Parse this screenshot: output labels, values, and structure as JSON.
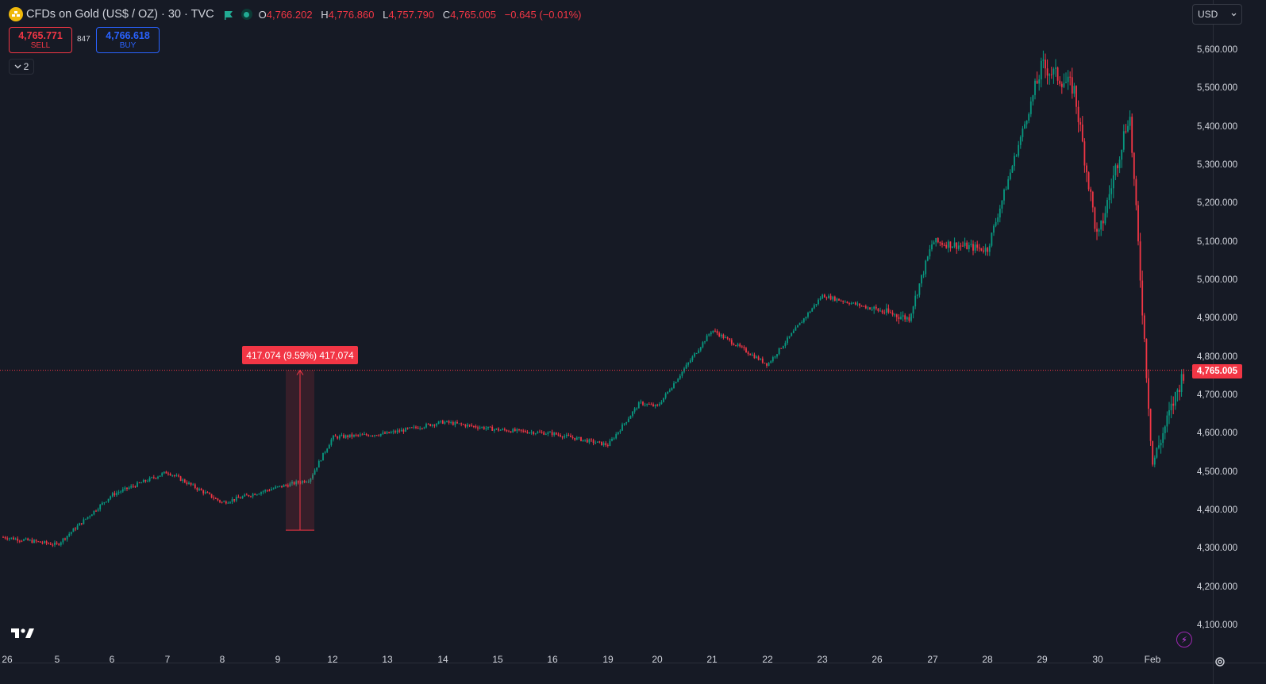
{
  "header": {
    "symbol_title": "CFDs on Gold (US$ / OZ) · 30 · TVC",
    "ohlc": [
      {
        "key": "O",
        "value": "4,766.202"
      },
      {
        "key": "H",
        "value": "4,776.860"
      },
      {
        "key": "L",
        "value": "4,757.790"
      },
      {
        "key": "C",
        "value": "4,765.005"
      }
    ],
    "change": "−0.645 (−0.01%)",
    "colors": {
      "down": "#f23645",
      "up": "#089981",
      "buy": "#2962ff"
    }
  },
  "trade": {
    "sell_price": "4,765.771",
    "sell_label": "SELL",
    "spread": "847",
    "buy_price": "4,766.618",
    "buy_label": "BUY"
  },
  "indicators_toggle": "2",
  "currency": "USD",
  "measure_label": "417.074 (9.59%) 417,074",
  "last_price_label": "4,765.005",
  "icons": [
    "gold-coin-icon",
    "market-flag-icon",
    "market-status-icon",
    "chevron-down-icon",
    "tradingview-logo-icon",
    "flash-icon",
    "gear-icon"
  ],
  "chart_data": {
    "type": "candlestick",
    "symbol": "CFDs on Gold (US$ / OZ)",
    "interval": "30",
    "y_ticks": [
      "5,600.000",
      "5,500.000",
      "5,400.000",
      "5,300.000",
      "5,200.000",
      "5,100.000",
      "5,000.000",
      "4,900.000",
      "4,800.000",
      "4,700.000",
      "4,600.000",
      "4,500.000",
      "4,400.000",
      "4,300.000",
      "4,200.000",
      "4,100.000"
    ],
    "y_tick_values": [
      5600,
      5500,
      5400,
      5300,
      5200,
      5100,
      5000,
      4900,
      4800,
      4700,
      4600,
      4500,
      4400,
      4300,
      4200,
      4100
    ],
    "x_ticks": [
      "26",
      "5",
      "6",
      "7",
      "8",
      "9",
      "12",
      "13",
      "14",
      "15",
      "16",
      "19",
      "20",
      "21",
      "22",
      "23",
      "26",
      "27",
      "28",
      "29",
      "30",
      "Feb"
    ],
    "y_range": [
      4050,
      5650
    ],
    "last_price": 4765.005,
    "grid": false,
    "measure": {
      "from": 4348,
      "to": 4765.005,
      "change": 417.074,
      "percent": 9.59
    },
    "path_x_ticks": [
      "26",
      "5",
      "6",
      "7",
      "8",
      "9",
      "9",
      "12",
      "13",
      "14",
      "15",
      "16",
      "19",
      "19",
      "20",
      "21",
      "22",
      "23",
      "26",
      "27",
      "28",
      "29",
      "29",
      "30",
      "30",
      "Feb",
      "Feb"
    ],
    "path_y": [
      4330,
      4310,
      4440,
      4500,
      4420,
      4460,
      4480,
      4590,
      4600,
      4630,
      4610,
      4600,
      4570,
      4680,
      4670,
      4870,
      4780,
      4960,
      4900,
      5100,
      5080,
      5560,
      5500,
      5100,
      5440,
      4520,
      4765
    ]
  }
}
